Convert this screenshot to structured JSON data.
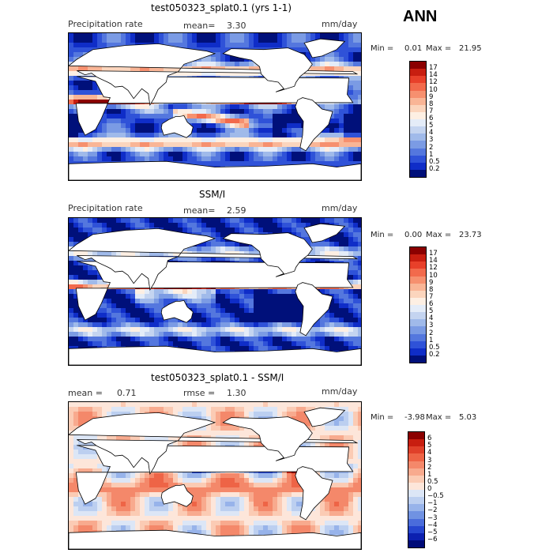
{
  "season": "ANN",
  "panels": [
    {
      "title": "test050323_splat0.1 (yrs 1-1)",
      "variable": "Precipitation rate",
      "stat_label": "mean=",
      "stat_value": "3.30",
      "units": "mm/day",
      "min_label": "Min =",
      "min_value": "0.01",
      "max_label": "Max =",
      "max_value": "21.95",
      "colorbar": {
        "labels": [
          "17",
          "14",
          "12",
          "10",
          "9",
          "8",
          "7",
          "6",
          "5",
          "4",
          "3",
          "2",
          "1",
          "0.5",
          "0.2"
        ],
        "colors": [
          "#8b0000",
          "#c81e10",
          "#e8402a",
          "#f26a4c",
          "#f6906f",
          "#f9b596",
          "#fbd5bd",
          "#fdefe3",
          "#e4ecf8",
          "#c4d4f0",
          "#a0baea",
          "#7b9be4",
          "#5477de",
          "#2f52d8",
          "#0f2dc8",
          "#00107a"
        ]
      },
      "kind": "model"
    },
    {
      "title": "SSM/I",
      "variable": "Precipitation rate",
      "stat_label": "mean=",
      "stat_value": "2.59",
      "units": "mm/day",
      "min_label": "Min =",
      "min_value": "0.00",
      "max_label": "Max =",
      "max_value": "23.73",
      "colorbar": {
        "labels": [
          "17",
          "14",
          "12",
          "10",
          "9",
          "8",
          "7",
          "6",
          "5",
          "4",
          "3",
          "2",
          "1",
          "0.5",
          "0.2"
        ],
        "colors": [
          "#8b0000",
          "#c81e10",
          "#e8402a",
          "#f26a4c",
          "#f6906f",
          "#f9b596",
          "#fbd5bd",
          "#fdefe3",
          "#e4ecf8",
          "#c4d4f0",
          "#a0baea",
          "#7b9be4",
          "#5477de",
          "#2f52d8",
          "#0f2dc8",
          "#00107a"
        ]
      },
      "kind": "obs"
    },
    {
      "title": "test050323_splat0.1 - SSM/I",
      "stat_label": "mean =",
      "stat_value": "0.71",
      "rmse_label": "rmse =",
      "rmse_value": "1.30",
      "units": "mm/day",
      "min_label": "Min =",
      "min_value": "-3.98",
      "max_label": "Max =",
      "max_value": "5.03",
      "colorbar": {
        "labels": [
          "6",
          "5",
          "4",
          "3",
          "2",
          "1",
          "0.5",
          "0",
          "−0.5",
          "−1",
          "−2",
          "−3",
          "−4",
          "−5",
          "−6"
        ],
        "colors": [
          "#8b0000",
          "#c81e10",
          "#e0402a",
          "#ee6446",
          "#f4886a",
          "#f8aa8e",
          "#fbcbb4",
          "#fde6da",
          "#dce6f6",
          "#bccff0",
          "#97b3ea",
          "#7092e2",
          "#4a6cdb",
          "#2646cf",
          "#0c20b0",
          "#000b78"
        ]
      },
      "kind": "diff"
    }
  ]
}
